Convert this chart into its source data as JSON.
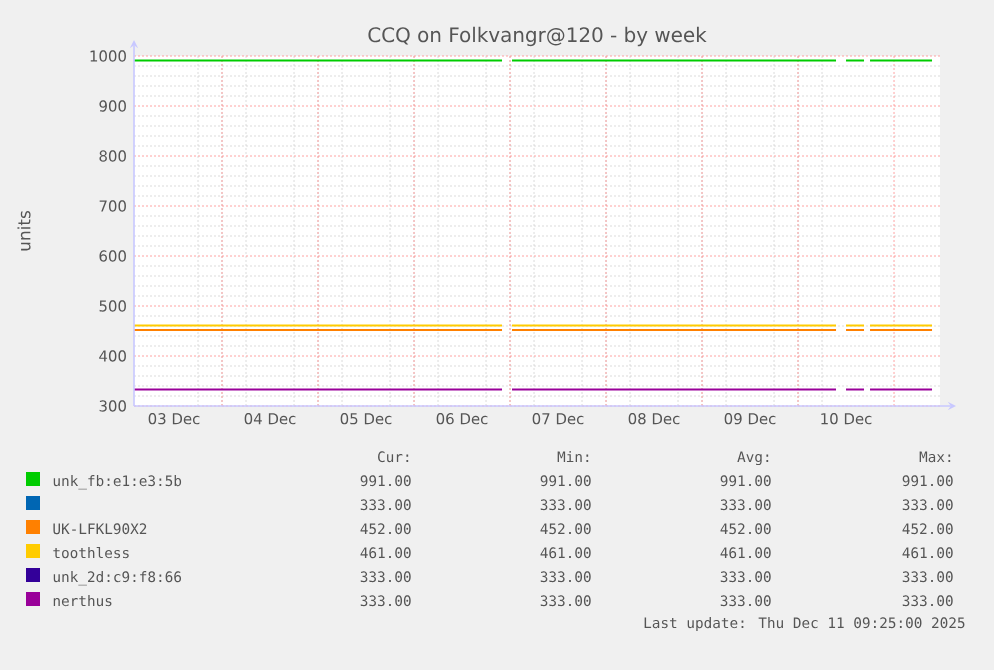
{
  "chart_data": {
    "type": "line",
    "title": "CCQ on Folkvangr@120 - by week",
    "ylabel": "units",
    "x": [
      "2025-12-03T02:00",
      "2025-12-06T22:00",
      "2025-12-06T23:00",
      "2025-12-07T00:30",
      "2025-12-10T09:30",
      "2025-12-10T11:00",
      "2025-12-10T12:00",
      "2025-12-10T16:30",
      "2025-12-10T17:00",
      "2025-12-10T18:00",
      "2025-12-11T09:30"
    ],
    "series": [
      {
        "name": "unk_fb:e1:e3:5b",
        "color": "#00cc00",
        "values": [
          991,
          991,
          null,
          991,
          991,
          null,
          991,
          991,
          null,
          991,
          991
        ]
      },
      {
        "color": "#0066b3",
        "values": [
          null,
          null,
          null,
          null,
          null,
          null,
          null,
          null,
          null,
          null,
          null
        ]
      },
      {
        "name": "UK-LFKL90X2",
        "color": "#ff8000",
        "values": [
          452,
          452,
          null,
          452,
          452,
          null,
          452,
          452,
          null,
          452,
          452
        ]
      },
      {
        "name": "toothless",
        "color": "#ffcc00",
        "values": [
          461,
          461,
          null,
          461,
          461,
          null,
          461,
          461,
          null,
          461,
          461
        ]
      },
      {
        "name": "unk_2d:c9:f8:66",
        "color": "#330099",
        "values": [
          null,
          null,
          null,
          null,
          null,
          null,
          null,
          null,
          null,
          null,
          null
        ]
      },
      {
        "name": "nerthus",
        "color": "#990099",
        "values": [
          333,
          333,
          null,
          333,
          333,
          null,
          333,
          333,
          null,
          333,
          333
        ]
      }
    ],
    "xlim": [
      "2025-12-03T02:00",
      "2025-12-11T11:30"
    ],
    "xticks": [
      {
        "value": "2025-12-03T12:00",
        "label": "03 Dec"
      },
      {
        "value": "2025-12-04T12:00",
        "label": "04 Dec"
      },
      {
        "value": "2025-12-05T12:00",
        "label": "05 Dec"
      },
      {
        "value": "2025-12-06T12:00",
        "label": "06 Dec"
      },
      {
        "value": "2025-12-07T12:00",
        "label": "07 Dec"
      },
      {
        "value": "2025-12-08T12:00",
        "label": "08 Dec"
      },
      {
        "value": "2025-12-09T12:00",
        "label": "09 Dec"
      },
      {
        "value": "2025-12-10T12:00",
        "label": "10 Dec"
      },
      {
        "value": "2025-12-04T00:00",
        "label": null
      },
      {
        "value": "2025-12-05T00:00",
        "label": null
      },
      {
        "value": "2025-12-06T00:00",
        "label": null
      },
      {
        "value": "2025-12-07T00:00",
        "label": null
      },
      {
        "value": "2025-12-08T00:00",
        "label": null
      },
      {
        "value": "2025-12-09T00:00",
        "label": null
      },
      {
        "value": "2025-12-10T00:00",
        "label": null
      },
      {
        "value": "2025-12-11T00:00",
        "label": null
      }
    ],
    "ylim": [
      300,
      1000
    ],
    "yticks": [
      300,
      400,
      500,
      600,
      700,
      800,
      900,
      1000
    ],
    "grid": true,
    "legend": "bottom",
    "line_style": "solid",
    "annotations": [
      "Cur:",
      "Min:",
      "Avg:",
      "Max:",
      "991.00",
      "991.00",
      "991.00",
      "991.00",
      "333.00",
      "333.00",
      "333.00",
      "333.00",
      "452.00",
      "452.00",
      "452.00",
      "452.00",
      "461.00",
      "461.00",
      "461.00",
      "461.00",
      "333.00",
      "333.00",
      "333.00",
      "333.00",
      "333.00",
      "333.00",
      "333.00",
      "333.00",
      "Last update: Thu Dec 11 09:25:00 2025"
    ]
  }
}
